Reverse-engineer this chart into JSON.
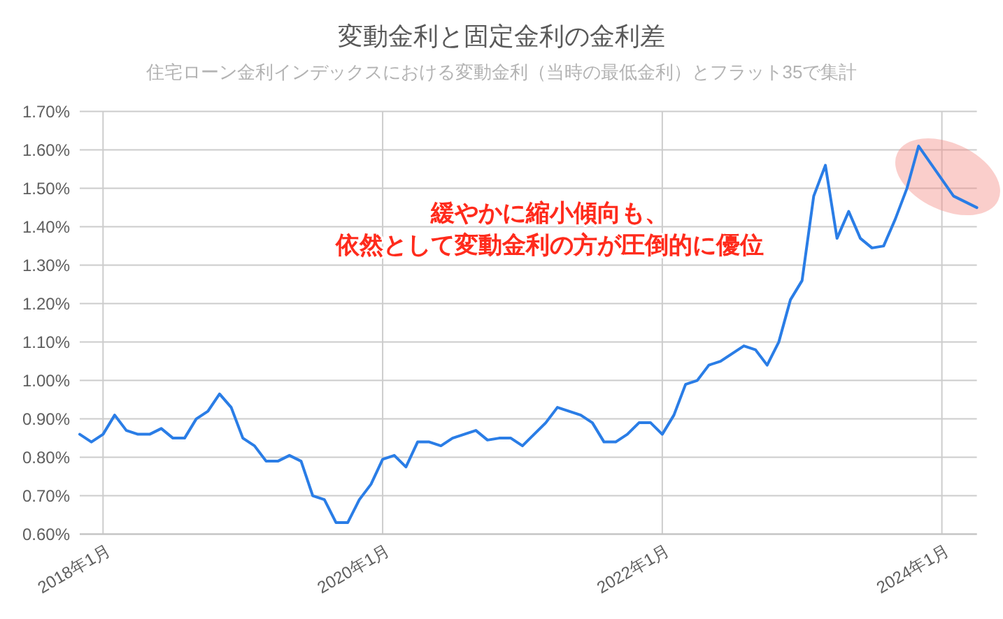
{
  "chart_data": {
    "type": "line",
    "title": "変動金利と固定金利の金利差",
    "subtitle": "住宅ローン金利インデックスにおける変動金利（当時の最低金利）とフラット35で集計",
    "annotations": [
      "緩やかに縮小傾向も、",
      "依然として変動金利の方が圧倒的に優位"
    ],
    "x": [
      "2017-11",
      "2017-12",
      "2018-01",
      "2018-02",
      "2018-03",
      "2018-04",
      "2018-05",
      "2018-06",
      "2018-07",
      "2018-08",
      "2018-09",
      "2018-10",
      "2018-11",
      "2018-12",
      "2019-01",
      "2019-02",
      "2019-03",
      "2019-04",
      "2019-05",
      "2019-06",
      "2019-07",
      "2019-08",
      "2019-09",
      "2019-10",
      "2019-11",
      "2019-12",
      "2020-01",
      "2020-02",
      "2020-03",
      "2020-04",
      "2020-05",
      "2020-06",
      "2020-07",
      "2020-08",
      "2020-09",
      "2020-10",
      "2020-11",
      "2020-12",
      "2021-01",
      "2021-02",
      "2021-03",
      "2021-04",
      "2021-05",
      "2021-06",
      "2021-07",
      "2021-08",
      "2021-09",
      "2021-10",
      "2021-11",
      "2021-12",
      "2022-01",
      "2022-02",
      "2022-03",
      "2022-04",
      "2022-05",
      "2022-06",
      "2022-07",
      "2022-08",
      "2022-09",
      "2022-10",
      "2022-11",
      "2022-12",
      "2023-01",
      "2023-02",
      "2023-03",
      "2023-04",
      "2023-05",
      "2023-06",
      "2023-07",
      "2023-08",
      "2023-09",
      "2023-10",
      "2023-11",
      "2024-02",
      "2024-04"
    ],
    "series": [
      {
        "color": "#2a7de6",
        "values": [
          0.86,
          0.84,
          0.86,
          0.91,
          0.87,
          0.86,
          0.86,
          0.875,
          0.85,
          0.85,
          0.9,
          0.92,
          0.965,
          0.93,
          0.85,
          0.83,
          0.79,
          0.79,
          0.805,
          0.79,
          0.7,
          0.69,
          0.63,
          0.63,
          0.69,
          0.73,
          0.795,
          0.805,
          0.775,
          0.84,
          0.84,
          0.83,
          0.85,
          0.86,
          0.87,
          0.845,
          0.85,
          0.85,
          0.83,
          0.86,
          0.89,
          0.93,
          0.92,
          0.91,
          0.89,
          0.84,
          0.84,
          0.86,
          0.89,
          0.89,
          0.86,
          0.91,
          0.99,
          1.0,
          1.04,
          1.05,
          1.07,
          1.09,
          1.08,
          1.04,
          1.1,
          1.21,
          1.26,
          1.48,
          1.56,
          1.37,
          1.44,
          1.37,
          1.345,
          1.35,
          1.42,
          1.5,
          1.61,
          1.48,
          1.45
        ]
      }
    ],
    "xlim": [
      "2017-11",
      "2024-04"
    ],
    "xticks": [
      {
        "value": "2018-01",
        "label": "2018年1月"
      },
      {
        "value": "2020-01",
        "label": "2020年1月"
      },
      {
        "value": "2022-01",
        "label": "2022年1月"
      },
      {
        "value": "2024-01",
        "label": "2024年1月"
      }
    ],
    "ylim": [
      0.6,
      1.7
    ],
    "yticks": [
      {
        "value": 0.6,
        "label": "0.60%"
      },
      {
        "value": 0.7,
        "label": "0.70%"
      },
      {
        "value": 0.8,
        "label": "0.80%"
      },
      {
        "value": 0.9,
        "label": "0.90%"
      },
      {
        "value": 1.0,
        "label": "1.00%"
      },
      {
        "value": 1.1,
        "label": "1.10%"
      },
      {
        "value": 1.2,
        "label": "1.20%"
      },
      {
        "value": 1.3,
        "label": "1.30%"
      },
      {
        "value": 1.4,
        "label": "1.40%"
      },
      {
        "value": 1.5,
        "label": "1.50%"
      },
      {
        "value": 1.6,
        "label": "1.60%"
      },
      {
        "value": 1.7,
        "label": "1.70%"
      }
    ],
    "grid": true
  }
}
